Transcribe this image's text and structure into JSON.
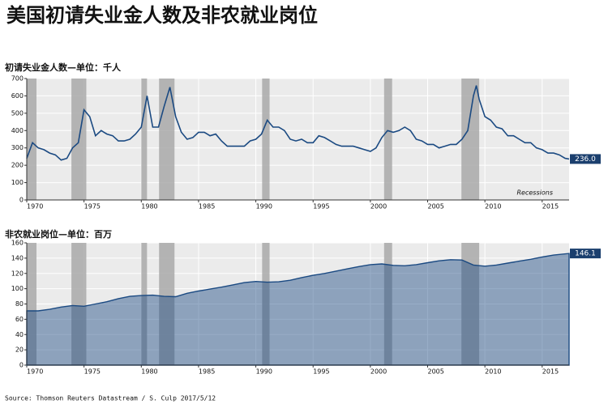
{
  "title": "美国初请失业金人数及非农就业岗位",
  "source": "Source: Thomson Reuters Datastream / S. Culp 2017/5/12",
  "chart_data": [
    {
      "type": "line",
      "title": "初请失业金人数—单位：千人",
      "recession_label": "Recessions",
      "x": [
        1970,
        1970.5,
        1971,
        1971.5,
        1972,
        1972.5,
        1973,
        1973.5,
        1974,
        1974.5,
        1975,
        1975.5,
        1976,
        1976.5,
        1977,
        1977.5,
        1978,
        1978.5,
        1979,
        1979.5,
        1980,
        1980.5,
        1981,
        1981.5,
        1982,
        1982.5,
        1983,
        1983.5,
        1984,
        1984.5,
        1985,
        1985.5,
        1986,
        1986.5,
        1987,
        1987.5,
        1988,
        1988.5,
        1989,
        1989.5,
        1990,
        1990.5,
        1991,
        1991.5,
        1992,
        1992.5,
        1993,
        1993.5,
        1994,
        1994.5,
        1995,
        1995.5,
        1996,
        1996.5,
        1997,
        1997.5,
        1998,
        1998.5,
        1999,
        1999.5,
        2000,
        2000.5,
        2001,
        2001.5,
        2002,
        2002.5,
        2003,
        2003.5,
        2004,
        2004.5,
        2005,
        2005.5,
        2006,
        2006.5,
        2007,
        2007.5,
        2008,
        2008.5,
        2009,
        2009.25,
        2009.5,
        2010,
        2010.5,
        2011,
        2011.5,
        2012,
        2012.5,
        2013,
        2013.5,
        2014,
        2014.5,
        2015,
        2015.5,
        2016,
        2016.5,
        2017,
        2017.35
      ],
      "series": [
        {
          "color": "#1b4a82",
          "values": [
            240,
            330,
            300,
            290,
            270,
            260,
            230,
            240,
            300,
            330,
            520,
            480,
            370,
            400,
            380,
            370,
            340,
            340,
            350,
            380,
            420,
            600,
            420,
            420,
            540,
            650,
            480,
            390,
            350,
            360,
            390,
            390,
            370,
            380,
            340,
            310,
            310,
            310,
            310,
            340,
            350,
            380,
            460,
            420,
            420,
            400,
            350,
            340,
            350,
            330,
            330,
            370,
            360,
            340,
            320,
            310,
            310,
            310,
            300,
            290,
            280,
            300,
            360,
            400,
            390,
            400,
            420,
            400,
            350,
            340,
            320,
            320,
            300,
            310,
            320,
            320,
            350,
            400,
            600,
            660,
            580,
            480,
            460,
            420,
            410,
            370,
            370,
            350,
            330,
            330,
            300,
            290,
            270,
            270,
            260,
            240,
            236
          ],
          "value_labels": [
            null,
            null,
            null,
            null,
            null,
            null,
            null,
            null,
            null,
            null,
            null,
            null,
            null,
            null,
            null,
            null,
            null,
            null,
            null,
            null,
            null,
            null,
            null,
            null,
            null,
            null,
            null,
            null,
            null,
            null,
            null,
            null,
            null,
            null,
            null,
            null,
            null,
            null,
            null,
            null,
            null,
            null,
            null,
            null,
            null,
            null,
            null,
            null,
            null,
            null,
            null,
            null,
            null,
            null,
            null,
            null,
            null,
            null,
            null,
            null,
            null,
            null,
            null,
            null,
            null,
            null,
            null,
            null,
            null,
            null,
            null,
            null,
            null,
            null,
            null,
            null,
            null,
            null,
            null,
            null,
            null,
            null,
            null,
            null,
            null,
            null,
            null,
            null,
            null,
            null,
            null,
            null,
            null,
            null,
            null,
            null,
            "236.0"
          ]
        }
      ],
      "recessions": [
        [
          1970,
          1970.85
        ],
        [
          1973.9,
          1975.2
        ],
        [
          1980,
          1980.5
        ],
        [
          1981.55,
          1982.9
        ],
        [
          1990.55,
          1991.2
        ],
        [
          2001.2,
          2001.9
        ],
        [
          2007.95,
          2009.5
        ]
      ],
      "xlim": [
        1970,
        2017.35
      ],
      "ylim": [
        0,
        700
      ],
      "xticks": [
        1970,
        1975,
        1980,
        1985,
        1990,
        1995,
        2000,
        2005,
        2010,
        2015
      ],
      "yticks": [
        0,
        100,
        200,
        300,
        400,
        500,
        600,
        700
      ],
      "grid": true
    },
    {
      "type": "area",
      "title": "非农就业岗位—单位：百万",
      "x": [
        1970,
        1971,
        1972,
        1973,
        1974,
        1975,
        1976,
        1977,
        1978,
        1979,
        1980,
        1981,
        1982,
        1983,
        1984,
        1985,
        1986,
        1987,
        1988,
        1989,
        1990,
        1991,
        1992,
        1993,
        1994,
        1995,
        1996,
        1997,
        1998,
        1999,
        2000,
        2001,
        2002,
        2003,
        2004,
        2005,
        2006,
        2007,
        2008,
        2009,
        2010,
        2011,
        2012,
        2013,
        2014,
        2015,
        2016,
        2017.35
      ],
      "series": [
        {
          "color": "#1b4a82",
          "values": [
            71,
            71,
            73,
            76,
            78,
            77,
            80,
            83,
            87,
            90,
            91,
            91.5,
            90,
            89.5,
            94,
            97,
            99.5,
            102,
            105,
            108,
            109.5,
            108.5,
            109,
            111,
            114.5,
            117.5,
            120,
            123,
            126,
            129,
            131.5,
            132.5,
            130.5,
            130,
            131.5,
            134,
            136.5,
            138,
            137.5,
            131,
            129.5,
            131,
            133.5,
            136,
            138.5,
            141.5,
            144,
            146.1
          ]
        }
      ],
      "recessions": [
        [
          1970,
          1970.85
        ],
        [
          1973.9,
          1975.2
        ],
        [
          1980,
          1980.5
        ],
        [
          1981.55,
          1982.9
        ],
        [
          1990.55,
          1991.2
        ],
        [
          2001.2,
          2001.9
        ],
        [
          2007.95,
          2009.5
        ]
      ],
      "xlim": [
        1970,
        2017.35
      ],
      "ylim": [
        0,
        160
      ],
      "xticks": [
        1970,
        1975,
        1980,
        1985,
        1990,
        1995,
        2000,
        2005,
        2010,
        2015
      ],
      "yticks": [
        0,
        20,
        40,
        60,
        80,
        100,
        120,
        140,
        160
      ],
      "grid": true
    }
  ]
}
